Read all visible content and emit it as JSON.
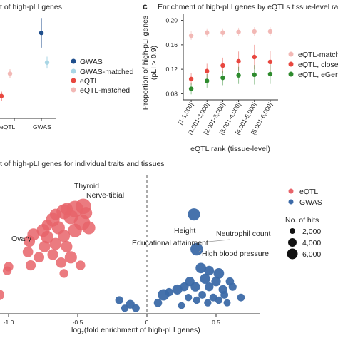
{
  "panel_a": {
    "title": "t of high-pLI genes",
    "legend": [
      {
        "label": "GWAS",
        "color": "#1f4e8c"
      },
      {
        "label": "GWAS-matched",
        "color": "#a9d6e5"
      },
      {
        "label": "eQTL",
        "color": "#e8473f"
      },
      {
        "label": "eQTL-matched",
        "color": "#f2b8b5"
      }
    ],
    "x_ticks": [
      "eQTL",
      "GWAS"
    ]
  },
  "panel_c": {
    "letter": "c",
    "title": "Enrichment of high-pLI genes by eQTLs tissue-level rank",
    "ylabel_line1": "Proportion of high-pLI genes",
    "ylabel_line2": "(pLI > 0.9)",
    "xlabel": "eQTL rank (tissue-level)",
    "y_ticks": [
      "0.20",
      "0.16",
      "0.12",
      "0.08"
    ],
    "legend": [
      {
        "label": "eQTL-matched",
        "color": "#f2b8b5"
      },
      {
        "label": "eQTL, closest",
        "color": "#e8473f"
      },
      {
        "label": "eQTL, eGene",
        "color": "#2e8b2e"
      }
    ]
  },
  "panel_b": {
    "title": "t of high-pLI genes for individual traits and tissues",
    "xlabel_prefix": "log",
    "xlabel_sub": "2",
    "xlabel_suffix": "(fold enrichment of high-pLI genes)",
    "x_ticks": [
      "-1.0",
      "-0.5",
      "0",
      "0.5"
    ],
    "annotations": [
      "Thyroid",
      "Nerve-tibial",
      "Ovary",
      "Height",
      "Neutrophil count",
      "Educational attainment",
      "High blood pressure"
    ],
    "legend": [
      {
        "label": "eQTL",
        "color": "#e8646a"
      },
      {
        "label": "GWAS",
        "color": "#3c6aa8"
      }
    ],
    "size_legend_title": "No. of hits",
    "size_legend": [
      "2,000",
      "4,000",
      "6,000"
    ]
  },
  "chart_data": [
    {
      "type": "scatter",
      "title": "t of high-pLI genes",
      "categories": [
        "eQTL",
        "GWAS"
      ],
      "series": [
        {
          "name": "GWAS",
          "x": [
            "GWAS"
          ],
          "y": [
            0.175
          ],
          "err": [
            0.02
          ]
        },
        {
          "name": "GWAS-matched",
          "x": [
            "GWAS"
          ],
          "y": [
            0.135
          ],
          "err": [
            0.008
          ]
        },
        {
          "name": "eQTL",
          "x": [
            "eQTL"
          ],
          "y": [
            0.09
          ],
          "err": [
            0.006
          ]
        },
        {
          "name": "eQTL-matched",
          "x": [
            "eQTL"
          ],
          "y": [
            0.12
          ],
          "err": [
            0.006
          ]
        }
      ]
    },
    {
      "type": "scatter",
      "title": "Enrichment of high-pLI genes by eQTLs tissue-level rank",
      "xlabel": "eQTL rank (tissue-level)",
      "ylabel": "Proportion of high-pLI genes (pLI > 0.9)",
      "categories": [
        "[1-1,000]",
        "[1,001-2,000]",
        "[2,001-3,000]",
        "[3,001-4,000]",
        "[4,001-5,000]",
        "[5,001-6,000]"
      ],
      "ylim": [
        0.07,
        0.21
      ],
      "series": [
        {
          "name": "eQTL-matched",
          "values": [
            0.175,
            0.18,
            0.18,
            0.181,
            0.182,
            0.182
          ],
          "err": [
            0.007,
            0.007,
            0.007,
            0.007,
            0.007,
            0.007
          ]
        },
        {
          "name": "eQTL, closest",
          "values": [
            0.104,
            0.117,
            0.126,
            0.133,
            0.14,
            0.132
          ],
          "err": [
            0.01,
            0.012,
            0.013,
            0.016,
            0.02,
            0.018
          ]
        },
        {
          "name": "eQTL, eGene",
          "values": [
            0.088,
            0.101,
            0.106,
            0.11,
            0.111,
            0.112
          ],
          "err": [
            0.009,
            0.011,
            0.012,
            0.014,
            0.016,
            0.016
          ]
        }
      ]
    },
    {
      "type": "scatter",
      "title": "t of high-pLI genes for individual traits and tissues",
      "xlabel": "log2(fold enrichment of high-pLI genes)",
      "xlim": [
        -1.1,
        0.95
      ],
      "ylim": [
        0,
        1
      ],
      "series": [
        {
          "name": "eQTL",
          "points": [
            {
              "x": -0.46,
              "y": 0.78,
              "hits": 5500
            },
            {
              "x": -0.52,
              "y": 0.76,
              "hits": 6500
            },
            {
              "x": -0.6,
              "y": 0.74,
              "hits": 5000
            },
            {
              "x": -0.55,
              "y": 0.7,
              "hits": 4500
            },
            {
              "x": -0.47,
              "y": 0.66,
              "hits": 6000
            },
            {
              "x": -0.68,
              "y": 0.68,
              "hits": 4000
            },
            {
              "x": -0.64,
              "y": 0.62,
              "hits": 3500
            },
            {
              "x": -0.75,
              "y": 0.6,
              "hits": 3500
            },
            {
              "x": -0.82,
              "y": 0.57,
              "hits": 3000
            },
            {
              "x": -0.72,
              "y": 0.55,
              "hits": 3200
            },
            {
              "x": -0.6,
              "y": 0.56,
              "hits": 3000
            },
            {
              "x": -0.52,
              "y": 0.6,
              "hits": 4000
            },
            {
              "x": -0.42,
              "y": 0.62,
              "hits": 3500
            },
            {
              "x": -0.85,
              "y": 0.52,
              "hits": 2500
            },
            {
              "x": -0.74,
              "y": 0.48,
              "hits": 2500
            },
            {
              "x": -0.66,
              "y": 0.5,
              "hits": 2800
            },
            {
              "x": -0.58,
              "y": 0.48,
              "hits": 2500
            },
            {
              "x": -0.86,
              "y": 0.44,
              "hits": 2000
            },
            {
              "x": -0.78,
              "y": 0.4,
              "hits": 2000
            },
            {
              "x": -0.68,
              "y": 0.42,
              "hits": 2200
            },
            {
              "x": -0.55,
              "y": 0.4,
              "hits": 3000
            },
            {
              "x": -0.62,
              "y": 0.36,
              "hits": 2000
            },
            {
              "x": -0.84,
              "y": 0.34,
              "hits": 1800
            },
            {
              "x": -0.48,
              "y": 0.34,
              "hits": 1500
            },
            {
              "x": -1.0,
              "y": 0.33,
              "hits": 1500
            },
            {
              "x": -1.01,
              "y": 0.3,
              "hits": 1200
            },
            {
              "x": -0.6,
              "y": 0.28,
              "hits": 1200
            },
            {
              "x": -1.07,
              "y": 0.12,
              "hits": 2200
            },
            {
              "x": -0.58,
              "y": 0.76,
              "hits": 3000
            },
            {
              "x": -0.66,
              "y": 0.72,
              "hits": 2500
            },
            {
              "x": -0.44,
              "y": 0.73,
              "hits": 3000
            },
            {
              "x": -0.72,
              "y": 0.64,
              "hits": 2200
            }
          ]
        },
        {
          "name": "GWAS",
          "points": [
            {
              "x": 0.36,
              "y": 0.46,
              "hits": 3200
            },
            {
              "x": 0.39,
              "y": 0.32,
              "hits": 2000
            },
            {
              "x": 0.45,
              "y": 0.3,
              "hits": 1600
            },
            {
              "x": 0.52,
              "y": 0.28,
              "hits": 2000
            },
            {
              "x": 0.5,
              "y": 0.22,
              "hits": 1500
            },
            {
              "x": 0.42,
              "y": 0.24,
              "hits": 1800
            },
            {
              "x": 0.31,
              "y": 0.22,
              "hits": 1500
            },
            {
              "x": 0.35,
              "y": 0.18,
              "hits": 1500
            },
            {
              "x": 0.27,
              "y": 0.18,
              "hits": 1200
            },
            {
              "x": 0.22,
              "y": 0.16,
              "hits": 1800
            },
            {
              "x": 0.45,
              "y": 0.18,
              "hits": 1200
            },
            {
              "x": 0.55,
              "y": 0.16,
              "hits": 1200
            },
            {
              "x": 0.6,
              "y": 0.22,
              "hits": 1000
            },
            {
              "x": 0.16,
              "y": 0.14,
              "hits": 1000
            },
            {
              "x": 0.12,
              "y": 0.12,
              "hits": 2500
            },
            {
              "x": 0.08,
              "y": 0.06,
              "hits": 1000
            },
            {
              "x": 0.4,
              "y": 0.12,
              "hits": 800
            },
            {
              "x": 0.48,
              "y": 0.1,
              "hits": 800
            },
            {
              "x": 0.56,
              "y": 0.12,
              "hits": 800
            },
            {
              "x": 0.36,
              "y": 0.08,
              "hits": 700
            },
            {
              "x": 0.44,
              "y": 0.06,
              "hits": 700
            },
            {
              "x": 0.52,
              "y": 0.08,
              "hits": 700
            },
            {
              "x": 0.58,
              "y": 0.06,
              "hits": 600
            },
            {
              "x": -0.12,
              "y": 0.05,
              "hits": 1200
            },
            {
              "x": -0.08,
              "y": 0.02,
              "hits": 800
            },
            {
              "x": -0.2,
              "y": 0.08,
              "hits": 900
            },
            {
              "x": -0.16,
              "y": 0.02,
              "hits": 700
            },
            {
              "x": 0.68,
              "y": 0.1,
              "hits": 800
            },
            {
              "x": 0.62,
              "y": 0.18,
              "hits": 900
            },
            {
              "x": 0.3,
              "y": 0.1,
              "hits": 700
            },
            {
              "x": 0.25,
              "y": 0.04,
              "hits": 600
            },
            {
              "x": 0.34,
              "y": 0.72,
              "hits": 3000
            }
          ]
        }
      ]
    }
  ]
}
